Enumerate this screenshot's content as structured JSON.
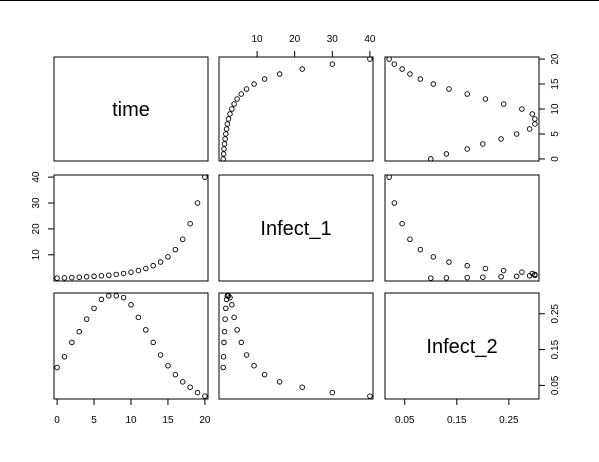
{
  "chart_data": {
    "type": "scatter",
    "variables": [
      "time",
      "Infect_1",
      "Infect_2"
    ],
    "axis_ticks": {
      "time": [
        0,
        5,
        10,
        15,
        20
      ],
      "Infect_1": [
        10,
        20,
        30,
        40
      ],
      "Infect_2": [
        0.05,
        0.15,
        0.25
      ]
    },
    "axis_ticks_vertical": {
      "time": [
        0,
        5,
        10,
        15,
        20
      ],
      "Infect_1": [
        10,
        20,
        30,
        40
      ],
      "Infect_2": [
        0.05,
        0.15,
        0.25
      ]
    },
    "ranges": {
      "time": [
        0,
        20
      ],
      "Infect_1": [
        0.7,
        40
      ],
      "Infect_2": [
        0.018,
        0.302
      ]
    },
    "data": {
      "time": [
        0,
        1,
        2,
        3,
        4,
        5,
        6,
        7,
        8,
        9,
        10,
        11,
        12,
        13,
        14,
        15,
        16,
        17,
        18,
        19,
        20
      ],
      "Infect_1": [
        1.0,
        1.1,
        1.2,
        1.35,
        1.5,
        1.7,
        1.9,
        2.1,
        2.4,
        2.8,
        3.3,
        3.9,
        4.7,
        5.8,
        7.2,
        9.2,
        12.0,
        16.0,
        22.0,
        30.0,
        40.0
      ],
      "Infect_2": [
        0.1,
        0.13,
        0.17,
        0.2,
        0.235,
        0.265,
        0.29,
        0.3,
        0.3,
        0.295,
        0.275,
        0.24,
        0.205,
        0.17,
        0.135,
        0.105,
        0.08,
        0.06,
        0.045,
        0.03,
        0.02
      ]
    }
  }
}
